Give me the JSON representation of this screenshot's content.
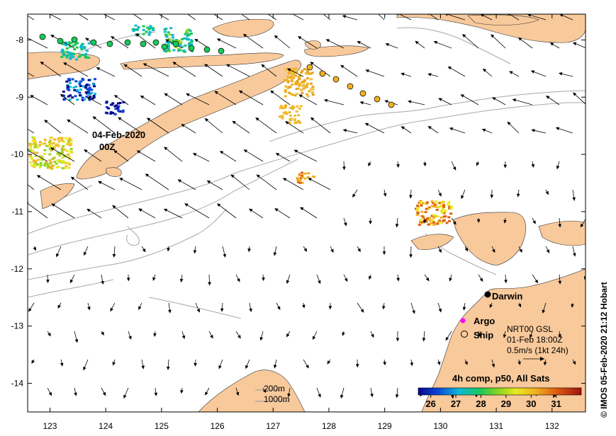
{
  "map": {
    "lon_range": [
      122.6,
      132.6
    ],
    "lat_range": [
      -14.5,
      -7.55
    ],
    "x_ticks": [
      123,
      124,
      125,
      126,
      127,
      128,
      129,
      130,
      131,
      132
    ],
    "y_ticks": [
      -8,
      -9,
      -10,
      -11,
      -12,
      -13,
      -14
    ],
    "date_label_line1": "04-Feb-2020",
    "date_label_line2": "00Z",
    "city_label": "Darwin",
    "city_lon": 130.84,
    "city_lat": -12.46,
    "colors": {
      "land": "#f8c99b",
      "sea": "#ffffff",
      "contour": "#a8a8a8",
      "arrow": "#000000",
      "argo": "#ff00ff"
    }
  },
  "legend": {
    "argo_label": "Argo",
    "ship_label": "Ship",
    "current_product": "NRT00 GSL",
    "current_time": "01-Feb 18:00Z",
    "current_scale": "0.5m/s (1kt 24h)",
    "contour_shallow": "200m",
    "contour_deep": "1000m"
  },
  "colorbar": {
    "title": "4h comp, p50, All Sats",
    "min": 25.5,
    "max": 32,
    "tick_labels": [
      "26",
      "27",
      "28",
      "29",
      "30",
      "31"
    ],
    "tick_values": [
      26,
      27,
      28,
      29,
      30,
      31
    ]
  },
  "credit": "© IMOS 05-Feb-2020 21:12 Hobart"
}
